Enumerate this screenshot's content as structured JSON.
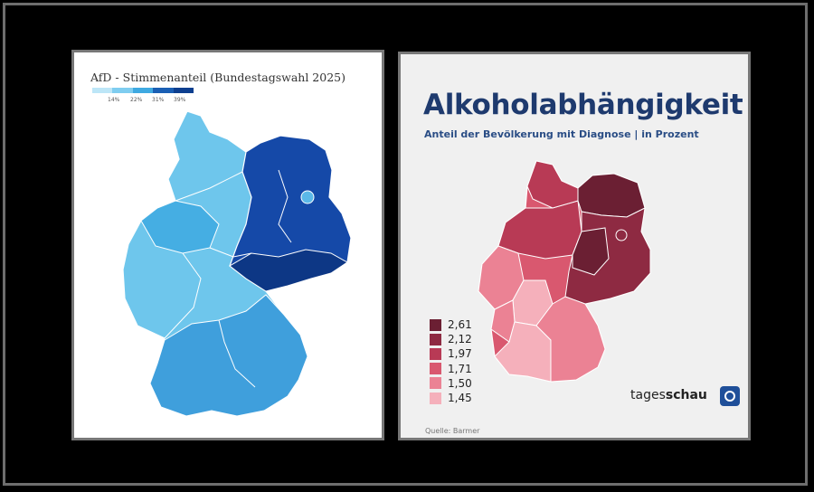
{
  "left_map": {
    "title": "AfD - Stimmenanteil (Bundestagswahl 2025)",
    "legend": {
      "ticks": [
        "14%",
        "22%",
        "31%",
        "39%"
      ],
      "colors": [
        "#bde6f7",
        "#7fcdf0",
        "#3fa9e1",
        "#1a5fb4",
        "#0d3f8f"
      ]
    },
    "region_colors": {
      "west_light": "#6ec6ec",
      "west_mid": "#45aee3",
      "south_mid": "#3f9fdc",
      "east_dark": "#1549a8",
      "east_darker": "#0d3785"
    }
  },
  "right_map": {
    "title": "Alkoholabhängigkeit",
    "subtitle": "Anteil der Bevölkerung mit Diagnose | in Prozent",
    "legend": [
      {
        "label": "2,61",
        "color": "#6b1f33"
      },
      {
        "label": "2,12",
        "color": "#8e2a42"
      },
      {
        "label": "1,97",
        "color": "#b83a55"
      },
      {
        "label": "1,71",
        "color": "#d9586f"
      },
      {
        "label": "1,50",
        "color": "#eb8294"
      },
      {
        "label": "1,45",
        "color": "#f5b0bb"
      }
    ],
    "brand_light": "tages",
    "brand_bold": "schau",
    "brand_icon": "tagesschau-logo-icon",
    "source": "Quelle: Barmer"
  }
}
